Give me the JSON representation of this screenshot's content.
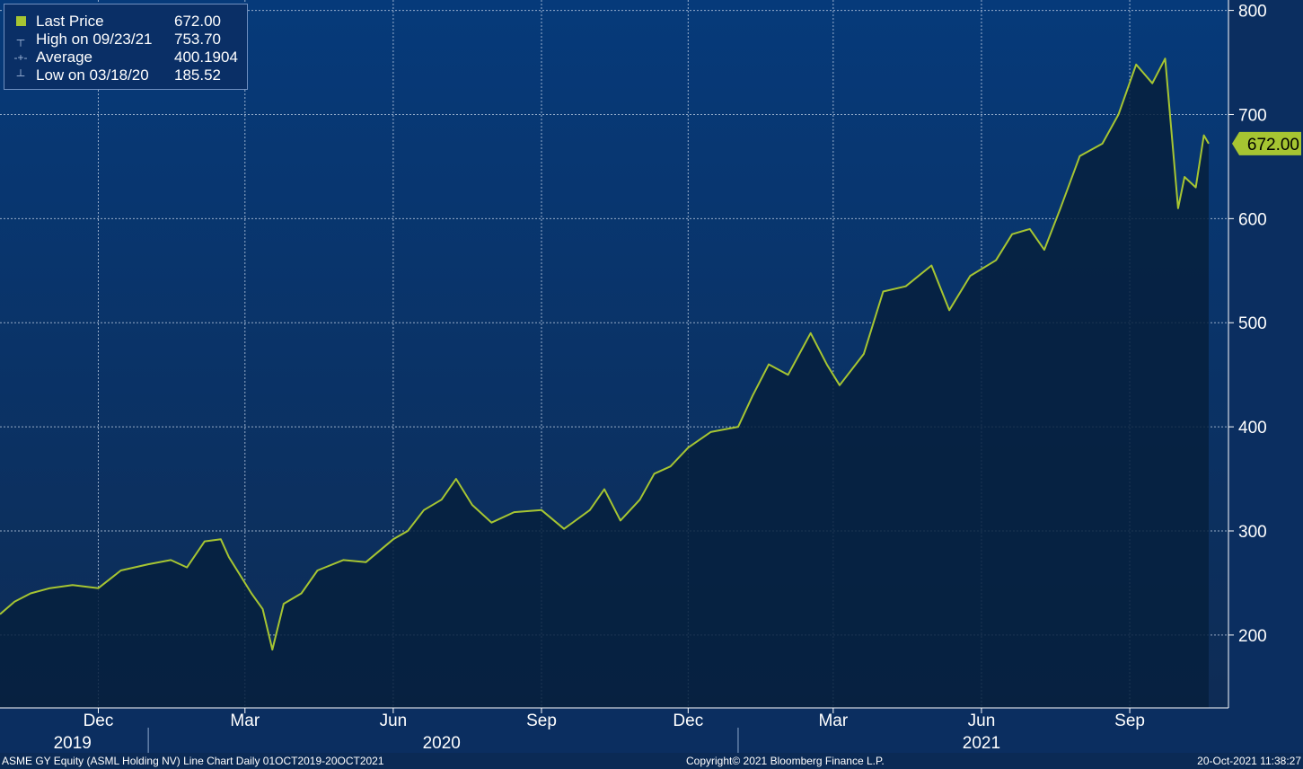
{
  "legend": {
    "items": [
      {
        "label": "Last Price",
        "value": "672.00",
        "icon": "square-swatch-icon"
      },
      {
        "label": "High on 09/23/21",
        "value": "753.70",
        "icon": "high-marker-icon"
      },
      {
        "label": "Average",
        "value": "400.1904",
        "icon": "average-marker-icon"
      },
      {
        "label": "Low on 03/18/20",
        "value": "185.52",
        "icon": "low-marker-icon"
      }
    ]
  },
  "last_price_label": "672.00",
  "footer": {
    "left": "ASME GY Equity (ASML Holding NV) Line Chart  Daily 01OCT2019-20OCT2021",
    "center": "Copyright© 2021 Bloomberg Finance L.P.",
    "right": "20-Oct-2021 11:38:27"
  },
  "colors": {
    "background_top": "#063a7a",
    "background_bottom": "#0e2c55",
    "area_fill": "#06203d",
    "line": "#a6c532",
    "badge": "#a6c532"
  },
  "chart_data": {
    "type": "area",
    "x_axis": {
      "month_labels": [
        {
          "label": "Dec",
          "date": "2019-12-01"
        },
        {
          "label": "Mar",
          "date": "2020-03-01"
        },
        {
          "label": "Jun",
          "date": "2020-06-01"
        },
        {
          "label": "Sep",
          "date": "2020-09-01"
        },
        {
          "label": "Dec",
          "date": "2020-12-01"
        },
        {
          "label": "Mar",
          "date": "2021-03-01"
        },
        {
          "label": "Jun",
          "date": "2021-06-01"
        },
        {
          "label": "Sep",
          "date": "2021-09-01"
        }
      ],
      "year_labels": [
        {
          "label": "2019",
          "date": "2019-11-15"
        },
        {
          "label": "2020",
          "date": "2020-07-01"
        },
        {
          "label": "2021",
          "date": "2021-06-01"
        }
      ],
      "range": [
        "2019-10-01",
        "2021-10-20"
      ]
    },
    "y_axis": {
      "ticks": [
        200,
        300,
        400,
        500,
        600,
        700,
        800
      ],
      "range": [
        130,
        810
      ],
      "position": "right"
    },
    "grid": true,
    "series": [
      {
        "name": "Last Price",
        "x": [
          "2019-10-01",
          "2019-10-10",
          "2019-10-20",
          "2019-11-01",
          "2019-11-15",
          "2019-12-01",
          "2019-12-15",
          "2020-01-01",
          "2020-01-15",
          "2020-01-25",
          "2020-02-05",
          "2020-02-15",
          "2020-02-20",
          "2020-02-28",
          "2020-03-05",
          "2020-03-12",
          "2020-03-18",
          "2020-03-25",
          "2020-04-05",
          "2020-04-15",
          "2020-05-01",
          "2020-05-15",
          "2020-06-01",
          "2020-06-10",
          "2020-06-20",
          "2020-07-01",
          "2020-07-10",
          "2020-07-20",
          "2020-08-01",
          "2020-08-15",
          "2020-09-01",
          "2020-09-15",
          "2020-10-01",
          "2020-10-10",
          "2020-10-20",
          "2020-11-01",
          "2020-11-10",
          "2020-11-20",
          "2020-12-01",
          "2020-12-15",
          "2021-01-01",
          "2021-01-10",
          "2021-01-20",
          "2021-02-01",
          "2021-02-15",
          "2021-02-25",
          "2021-03-05",
          "2021-03-20",
          "2021-04-01",
          "2021-04-15",
          "2021-05-01",
          "2021-05-12",
          "2021-05-25",
          "2021-06-10",
          "2021-06-20",
          "2021-07-01",
          "2021-07-10",
          "2021-07-20",
          "2021-08-01",
          "2021-08-15",
          "2021-08-25",
          "2021-09-05",
          "2021-09-15",
          "2021-09-23",
          "2021-10-01",
          "2021-10-05",
          "2021-10-12",
          "2021-10-17",
          "2021-10-20"
        ],
        "values": [
          220,
          232,
          240,
          245,
          248,
          245,
          262,
          268,
          272,
          265,
          290,
          292,
          275,
          255,
          240,
          225,
          186,
          230,
          240,
          262,
          272,
          270,
          292,
          300,
          320,
          330,
          350,
          325,
          308,
          318,
          320,
          302,
          320,
          340,
          310,
          330,
          355,
          362,
          380,
          395,
          400,
          430,
          460,
          450,
          490,
          460,
          440,
          470,
          530,
          535,
          555,
          512,
          545,
          560,
          585,
          590,
          570,
          610,
          660,
          672,
          700,
          748,
          730,
          753.7,
          610,
          640,
          630,
          680,
          672
        ]
      }
    ]
  }
}
